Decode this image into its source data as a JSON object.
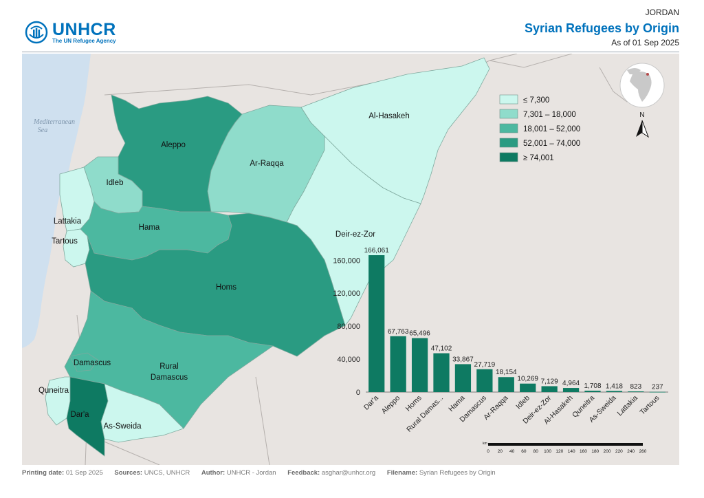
{
  "header": {
    "logo_name": "UNHCR",
    "logo_sub": "The UN Refugee Agency",
    "country": "JORDAN",
    "title": "Syrian Refugees by Origin",
    "as_of": "As of 01 Sep 2025"
  },
  "map": {
    "sea_label": [
      "Mediterranean",
      "Sea"
    ],
    "north_label": "N",
    "governorates": [
      {
        "name": "Al-Hasakeh",
        "refugees": 4964,
        "class": 1
      },
      {
        "name": "Aleppo",
        "refugees": 67763,
        "class": 4
      },
      {
        "name": "Ar-Raqqa",
        "refugees": 18154,
        "class": 3
      },
      {
        "name": "Idleb",
        "refugees": 10269,
        "class": 2
      },
      {
        "name": "Lattakia",
        "refugees": 823,
        "class": 1
      },
      {
        "name": "Tartous",
        "refugees": 237,
        "class": 1
      },
      {
        "name": "Hama",
        "refugees": 33867,
        "class": 3
      },
      {
        "name": "Deir-ez-Zor",
        "refugees": 7129,
        "class": 1
      },
      {
        "name": "Homs",
        "refugees": 65496,
        "class": 4
      },
      {
        "name": "Damascus",
        "refugees": 27719,
        "class": 3
      },
      {
        "name": "Rural Damascus",
        "refugees": 47102,
        "class": 3
      },
      {
        "name": "Quneitra",
        "refugees": 1708,
        "class": 1
      },
      {
        "name": "Dar'a",
        "refugees": 166061,
        "class": 5
      },
      {
        "name": "As-Sweida",
        "refugees": 1418,
        "class": 1
      }
    ],
    "legend": [
      {
        "label": "≤ 7,300",
        "color": "#ccf7ee"
      },
      {
        "label": "7,301 – 18,000",
        "color": "#8fdccb"
      },
      {
        "label": "18,001 – 52,000",
        "color": "#4cb8a0"
      },
      {
        "label": "52,001 – 74,000",
        "color": "#2a9b82"
      },
      {
        "label": "≥ 74,001",
        "color": "#0e7a62"
      }
    ],
    "scale_bar": {
      "unit": "km",
      "ticks": [
        "0",
        "20",
        "40",
        "60",
        "80",
        "100",
        "120",
        "140",
        "160",
        "180",
        "200",
        "220",
        "240",
        "260"
      ]
    }
  },
  "chart_data": {
    "type": "bar",
    "categories": [
      "Dar'a",
      "Aleppo",
      "Homs",
      "Rural Damas...",
      "Hama",
      "Damascus",
      "Ar-Raqqa",
      "Idleb",
      "Deir-ez-Zor",
      "Al-Hasakeh",
      "Quneitra",
      "As-Sweida",
      "Lattakia",
      "Tartous"
    ],
    "values": [
      166061,
      67763,
      65496,
      47102,
      33867,
      27719,
      18154,
      10269,
      7129,
      4964,
      1708,
      1418,
      823,
      237
    ],
    "value_labels": [
      "166,061",
      "67,763",
      "65,496",
      "47,102",
      "33,867",
      "27,719",
      "18,154",
      "10,269",
      "7,129",
      "4,964",
      "1,708",
      "1,418",
      "823",
      "237"
    ],
    "yticks": [
      0,
      40000,
      80000,
      120000,
      160000
    ],
    "ytick_labels": [
      "0",
      "40,000",
      "80,000",
      "120,000",
      "160,000"
    ],
    "ylim": [
      0,
      166061
    ],
    "color": "#0e7a62",
    "grid": false
  },
  "footer": {
    "printing_label": "Printing date:",
    "printing_value": "01 Sep 2025",
    "sources_label": "Sources:",
    "sources_value": "UNCS, UNHCR",
    "author_label": "Author:",
    "author_value": "UNHCR - Jordan",
    "feedback_label": "Feedback:",
    "feedback_value": "asghar@unhcr.org",
    "filename_label": "Filename:",
    "filename_value": "Syrian Refugees by Origin"
  }
}
